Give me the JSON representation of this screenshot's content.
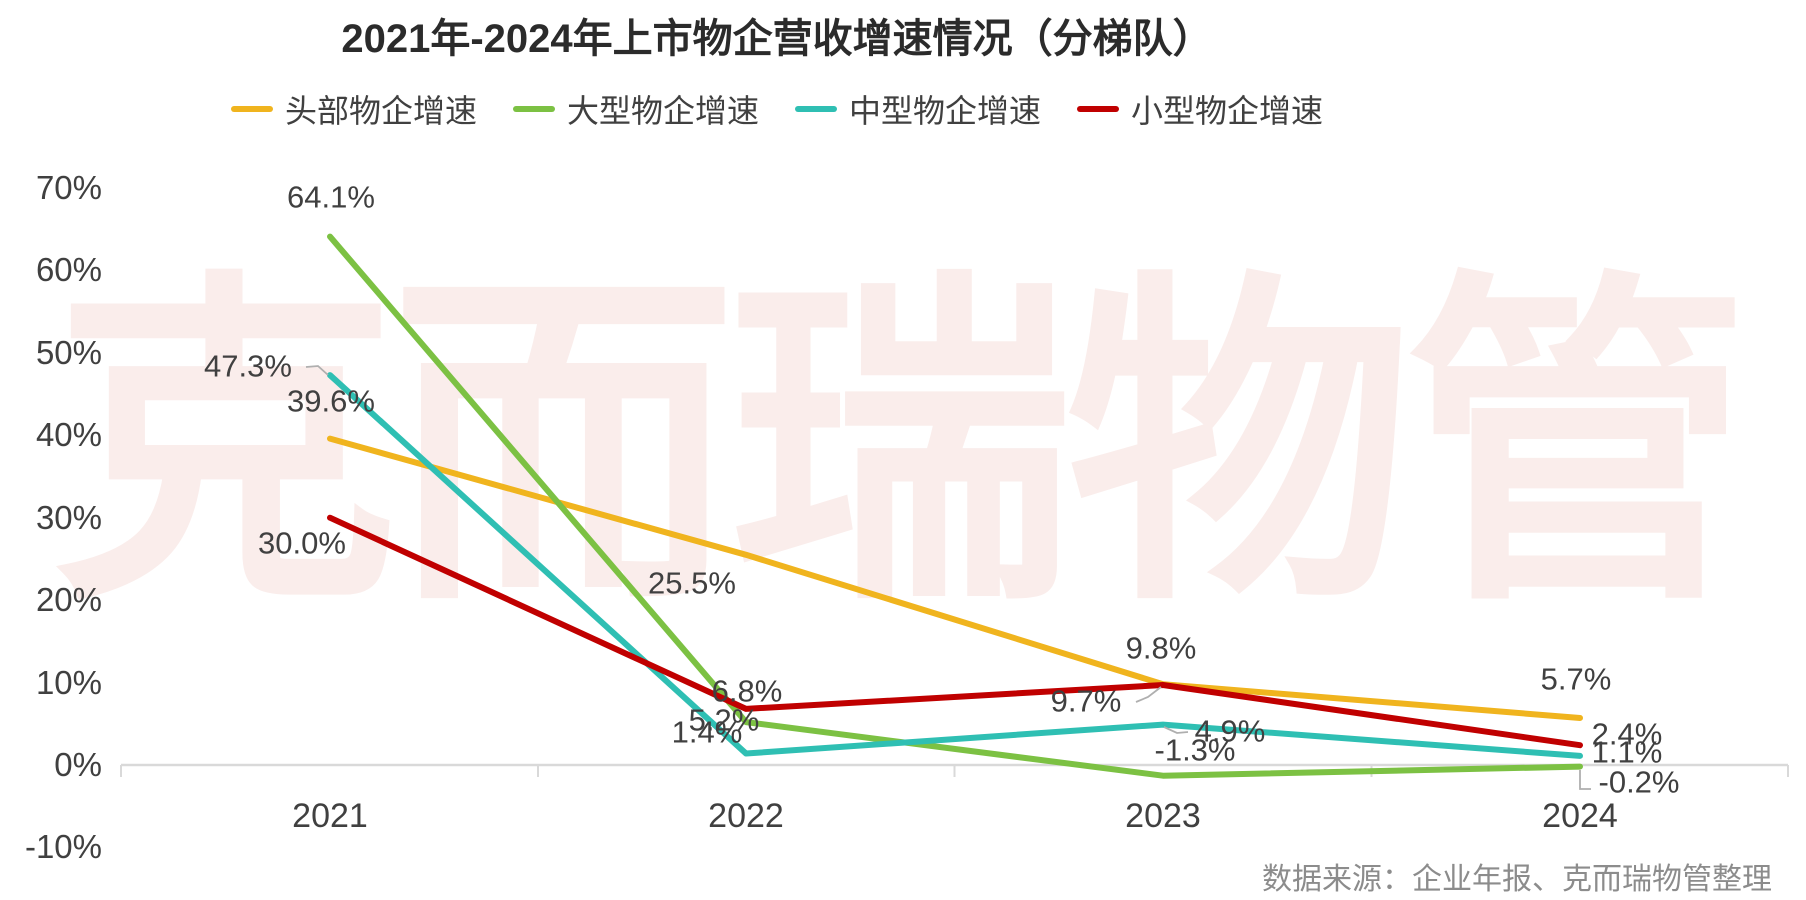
{
  "title": "2021年-2024年上市物企营收增速情况（分梯队）",
  "watermark": "克而瑞物管",
  "source": "数据来源：企业年报、克而瑞物管整理",
  "colors": {
    "yellow": "#F0B41E",
    "green": "#7CC143",
    "teal": "#2FBFB3",
    "red": "#C00000",
    "axis": "#D9D9D9",
    "leader": "#AFAFAF",
    "label_text": "#404040",
    "watermark": "#FAEDEB",
    "source_text": "#8C8C8C"
  },
  "chart_data": {
    "type": "line",
    "categories": [
      "2021",
      "2022",
      "2023",
      "2024"
    ],
    "ylim": [
      -10,
      70
    ],
    "grid": false,
    "legend_position": "top",
    "y_ticks": [
      {
        "label": "70%",
        "value": 70
      },
      {
        "label": "60%",
        "value": 60
      },
      {
        "label": "50%",
        "value": 50
      },
      {
        "label": "40%",
        "value": 40
      },
      {
        "label": "30%",
        "value": 30
      },
      {
        "label": "20%",
        "value": 20
      },
      {
        "label": "10%",
        "value": 10
      },
      {
        "label": "0%",
        "value": 0
      },
      {
        "label": "-10%",
        "value": -10
      }
    ],
    "series": [
      {
        "name": "头部物企增速",
        "color_key": "yellow",
        "values": [
          39.6,
          25.5,
          9.8,
          5.7
        ],
        "labels": [
          "39.6%",
          "25.5%",
          "9.8%",
          "5.7%"
        ]
      },
      {
        "name": "大型物企增速",
        "color_key": "green",
        "values": [
          64.1,
          5.2,
          -1.3,
          -0.2
        ],
        "labels": [
          "64.1%",
          "5.2%",
          "-1.3%",
          "-0.2%"
        ]
      },
      {
        "name": "中型物企增速",
        "color_key": "teal",
        "values": [
          47.3,
          1.4,
          4.9,
          1.1
        ],
        "labels": [
          "47.3%",
          "1.4%",
          "4.9%",
          "1.1%"
        ]
      },
      {
        "name": "小型物企增速",
        "color_key": "red",
        "values": [
          30.0,
          6.8,
          9.7,
          2.4
        ],
        "labels": [
          "30.0%",
          "6.8%",
          "9.7%",
          "2.4%"
        ]
      }
    ]
  }
}
